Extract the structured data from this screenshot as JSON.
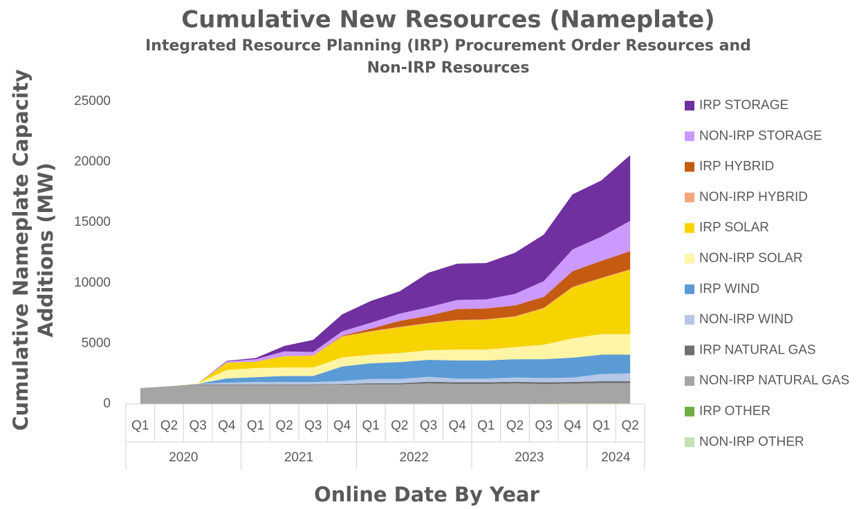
{
  "chart_data": {
    "type": "stacked_area",
    "title": "Cumulative New Resources (Nameplate)",
    "subtitle": [
      "Integrated Resource Planning (IRP) Procurement Order Resources and",
      "Non-IRP Resources"
    ],
    "y_label": [
      "Cumulative Nameplate Capacity",
      "Additions (MW)"
    ],
    "x_label": "Online Date By Year",
    "categories": [
      "Q1",
      "Q2",
      "Q3",
      "Q4",
      "Q1",
      "Q2",
      "Q3",
      "Q4",
      "Q1",
      "Q2",
      "Q3",
      "Q4",
      "Q1",
      "Q2",
      "Q3",
      "Q4",
      "Q1",
      "Q2"
    ],
    "x_groups": [
      {
        "label": "2020",
        "count": 4
      },
      {
        "label": "2021",
        "count": 4
      },
      {
        "label": "2022",
        "count": 4
      },
      {
        "label": "2023",
        "count": 4
      },
      {
        "label": "2024",
        "count": 2
      }
    ],
    "ylim": [
      0,
      25000
    ],
    "yticks": [
      0,
      5000,
      10000,
      15000,
      20000,
      25000
    ],
    "grid": false,
    "legend": "right",
    "series": [
      {
        "name": "NON-IRP OTHER",
        "color": "#c5e0b4",
        "values": [
          20,
          20,
          20,
          20,
          20,
          20,
          20,
          20,
          20,
          20,
          20,
          20,
          20,
          20,
          20,
          50,
          50,
          50
        ]
      },
      {
        "name": "IRP OTHER",
        "color": "#70ad47",
        "values": [
          0,
          0,
          0,
          0,
          0,
          0,
          0,
          0,
          0,
          0,
          30,
          30,
          30,
          30,
          30,
          30,
          30,
          30
        ]
      },
      {
        "name": "NON-IRP NATURAL GAS",
        "color": "#a5a5a5",
        "values": [
          1300,
          1450,
          1550,
          1550,
          1550,
          1550,
          1550,
          1580,
          1600,
          1600,
          1650,
          1600,
          1600,
          1650,
          1600,
          1600,
          1650,
          1650
        ]
      },
      {
        "name": "IRP NATURAL GAS",
        "color": "#6f6f6f",
        "values": [
          0,
          0,
          50,
          50,
          50,
          50,
          50,
          50,
          100,
          100,
          150,
          150,
          150,
          150,
          150,
          150,
          150,
          150
        ]
      },
      {
        "name": "NON-IRP WIND",
        "color": "#b4c7e7",
        "values": [
          0,
          0,
          50,
          150,
          200,
          200,
          200,
          250,
          350,
          350,
          400,
          300,
          300,
          350,
          350,
          350,
          600,
          650
        ]
      },
      {
        "name": "IRP WIND",
        "color": "#5b9bd5",
        "values": [
          0,
          0,
          0,
          350,
          400,
          500,
          500,
          1200,
          1300,
          1400,
          1400,
          1500,
          1500,
          1500,
          1550,
          1650,
          1600,
          1550
        ]
      },
      {
        "name": "NON-IRP SOLAR",
        "color": "#fff5a5",
        "values": [
          0,
          0,
          50,
          700,
          750,
          700,
          700,
          750,
          700,
          750,
          800,
          900,
          900,
          1000,
          1200,
          1600,
          1700,
          1700
        ]
      },
      {
        "name": "IRP SOLAR",
        "color": "#f7d300",
        "values": [
          0,
          0,
          0,
          600,
          530,
          930,
          980,
          1700,
          1900,
          2100,
          2200,
          2400,
          2450,
          2500,
          3000,
          4200,
          4600,
          5300
        ]
      },
      {
        "name": "NON-IRP HYBRID",
        "color": "#f4a77a",
        "values": [
          0,
          0,
          0,
          0,
          0,
          0,
          0,
          50,
          50,
          50,
          50,
          50,
          50,
          50,
          50,
          50,
          50,
          50
        ]
      },
      {
        "name": "IRP HYBRID",
        "color": "#c55a11",
        "values": [
          0,
          0,
          0,
          0,
          0,
          0,
          0,
          50,
          200,
          500,
          600,
          900,
          900,
          900,
          900,
          1300,
          1400,
          1500
        ]
      },
      {
        "name": "NON-IRP STORAGE",
        "color": "#cc99ff",
        "values": [
          0,
          0,
          0,
          100,
          200,
          400,
          300,
          350,
          500,
          600,
          700,
          750,
          750,
          950,
          1300,
          1800,
          2000,
          2500
        ]
      },
      {
        "name": "IRP STORAGE",
        "color": "#7030a0",
        "values": [
          0,
          0,
          0,
          50,
          100,
          450,
          1000,
          1400,
          1800,
          1850,
          2850,
          3000,
          3000,
          3400,
          3850,
          4550,
          4650,
          5450
        ]
      }
    ]
  }
}
